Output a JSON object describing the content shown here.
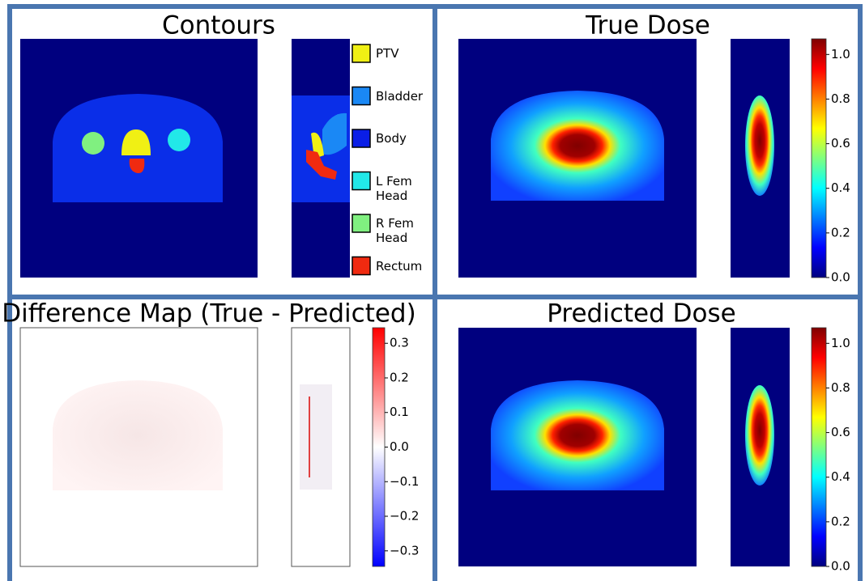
{
  "panels": [
    {
      "title": "Contours",
      "legend": [
        {
          "label": "PTV",
          "color": "#f0f014"
        },
        {
          "label": "Bladder",
          "color": "#1a88f5"
        },
        {
          "label": "Body",
          "color": "#0a1ee6"
        },
        {
          "label": "L Fem Head",
          "color": "#22e8e8"
        },
        {
          "label": "R Fem Head",
          "color": "#80f080"
        },
        {
          "label": "Rectum",
          "color": "#f02a10"
        }
      ]
    },
    {
      "title": "True Dose",
      "colorbar": {
        "colormap": "jet",
        "lim": [
          0,
          1.07
        ],
        "ticks": [
          {
            "value": 0,
            "label": "0.0"
          },
          0.2,
          0.4,
          0.6,
          0.8,
          {
            "value": 1,
            "label": "1.0"
          }
        ]
      }
    },
    {
      "title": "Difference Map (True - Predicted)",
      "colorbar": {
        "colormap": "bwr",
        "lim": [
          -0.345,
          0.345
        ],
        "ticks": [
          {
            "value": -0.3,
            "label": "−0.3"
          },
          {
            "value": -0.2,
            "label": "−0.2"
          },
          {
            "value": -0.1,
            "label": "−0.1"
          },
          {
            "value": 0,
            "label": "0.0"
          },
          0.1,
          0.2,
          0.3
        ]
      }
    },
    {
      "title": "Predicted Dose",
      "colorbar": {
        "colormap": "jet",
        "lim": [
          0,
          1.07
        ],
        "ticks": [
          {
            "value": 0,
            "label": "0.0"
          },
          0.2,
          0.4,
          0.6,
          0.8,
          {
            "value": 1,
            "label": "1.0"
          }
        ]
      }
    }
  ]
}
